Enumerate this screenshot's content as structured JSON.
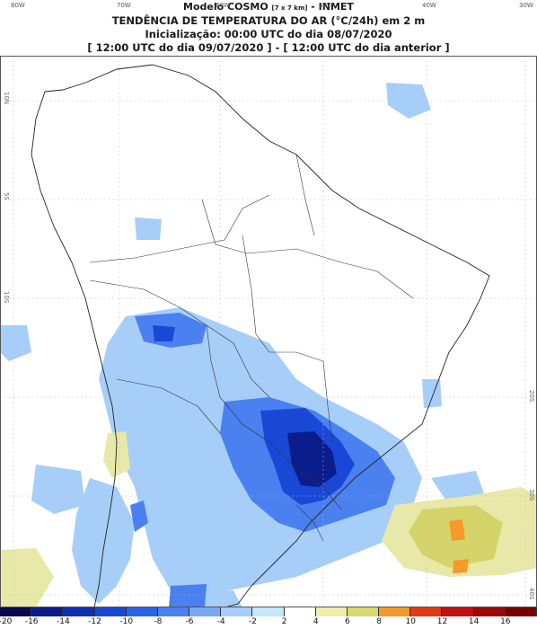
{
  "header": {
    "model_label": "Modelo COSMO",
    "grid_note": "[7 x 7 km]",
    "source": "- INMET",
    "title": "TENDÊNCIA DE TEMPERATURA DO AR (°C/24h) em 2 m",
    "init": "Inicialização: 00:00 UTC do dia 08/07/2020",
    "period": "[ 12:00 UTC do dia 09/07/2020 ] - [ 12:00 UTC do dia anterior ]"
  },
  "axes": {
    "lon_labels": [
      "80W",
      "70W",
      "60W",
      "50W",
      "40W",
      "30W"
    ],
    "lat_labels": [
      "10N",
      "5S",
      "10S",
      "20S",
      "30S",
      "40S"
    ]
  },
  "colorbar": {
    "ticks": [
      "-20",
      "-16",
      "-14",
      "-12",
      "-10",
      "-8",
      "-6",
      "-4",
      "-2",
      "2",
      "4",
      "6",
      "8",
      "10",
      "12",
      "14",
      "16"
    ],
    "colors": [
      "#0a0a50",
      "#0b1c8c",
      "#1030b4",
      "#1a48d6",
      "#2a62e8",
      "#4a80f0",
      "#78a8f4",
      "#a6cef8",
      "#c6e6fb",
      "#ffffff",
      "#eeeeaa",
      "#d8d870",
      "#f59a2a",
      "#e23a12",
      "#c21010",
      "#9e0808",
      "#7a0000"
    ]
  },
  "palette": {
    "weak_cool": "#a6cef8",
    "mod_cool": "#4a80f0",
    "strong_cool": "#1030b4",
    "extreme_cool": "#0b1c8c",
    "weak_warm": "#e8e8a8",
    "mod_warm": "#d4d46a",
    "strong_warm": "#f59a2a",
    "boundary": "#222222",
    "grid": "#bbbbbb"
  }
}
